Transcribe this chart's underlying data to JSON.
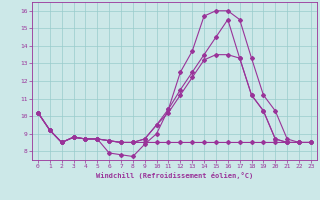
{
  "xlabel": "Windchill (Refroidissement éolien,°C)",
  "background_color": "#cce8e8",
  "line_color": "#993399",
  "grid_color": "#99cccc",
  "xlim": [
    -0.5,
    23.5
  ],
  "ylim": [
    7.5,
    16.5
  ],
  "xticks": [
    0,
    1,
    2,
    3,
    4,
    5,
    6,
    7,
    8,
    9,
    10,
    11,
    12,
    13,
    14,
    15,
    16,
    17,
    18,
    19,
    20,
    21,
    22,
    23
  ],
  "yticks": [
    8,
    9,
    10,
    11,
    12,
    13,
    14,
    15,
    16
  ],
  "line1_x": [
    0,
    1,
    2,
    3,
    4,
    5,
    6,
    7,
    8,
    9,
    10,
    11,
    12,
    13,
    14,
    15,
    16,
    17,
    18,
    19,
    20,
    21,
    22
  ],
  "line1_y": [
    10.2,
    9.2,
    8.5,
    8.8,
    8.7,
    8.7,
    7.9,
    7.8,
    7.7,
    8.4,
    9.0,
    10.4,
    12.5,
    13.7,
    15.7,
    16.0,
    16.0,
    15.5,
    13.3,
    11.2,
    10.3,
    8.7,
    8.5
  ],
  "line2_x": [
    0,
    1,
    2,
    3,
    4,
    5,
    6,
    7,
    8,
    9,
    10,
    11,
    12,
    13,
    14,
    15,
    16,
    17,
    18,
    19,
    20,
    21,
    22,
    23
  ],
  "line2_y": [
    10.2,
    9.2,
    8.5,
    8.8,
    8.7,
    8.7,
    8.6,
    8.5,
    8.5,
    8.5,
    8.5,
    8.5,
    8.5,
    8.5,
    8.5,
    8.5,
    8.5,
    8.5,
    8.5,
    8.5,
    8.5,
    8.5,
    8.5,
    8.5
  ],
  "line3_x": [
    0,
    1,
    2,
    3,
    4,
    5,
    6,
    7,
    8,
    9,
    10,
    11,
    12,
    13,
    14,
    15,
    16,
    17,
    18,
    19,
    20,
    21,
    22,
    23
  ],
  "line3_y": [
    10.2,
    9.2,
    8.5,
    8.8,
    8.7,
    8.7,
    8.6,
    8.5,
    8.5,
    8.7,
    9.5,
    10.2,
    11.2,
    12.2,
    13.2,
    13.5,
    13.5,
    13.3,
    11.2,
    10.3,
    8.7,
    8.5,
    8.5,
    8.5
  ],
  "line4_x": [
    0,
    1,
    2,
    3,
    4,
    5,
    6,
    7,
    8,
    9,
    10,
    11,
    12,
    13,
    14,
    15,
    16,
    17,
    18,
    19,
    20,
    21,
    22,
    23
  ],
  "line4_y": [
    10.2,
    9.2,
    8.5,
    8.8,
    8.7,
    8.7,
    8.6,
    8.5,
    8.5,
    8.7,
    9.5,
    10.4,
    11.5,
    12.5,
    13.5,
    14.5,
    15.5,
    13.3,
    11.2,
    10.3,
    8.7,
    8.5,
    8.5,
    8.5
  ]
}
